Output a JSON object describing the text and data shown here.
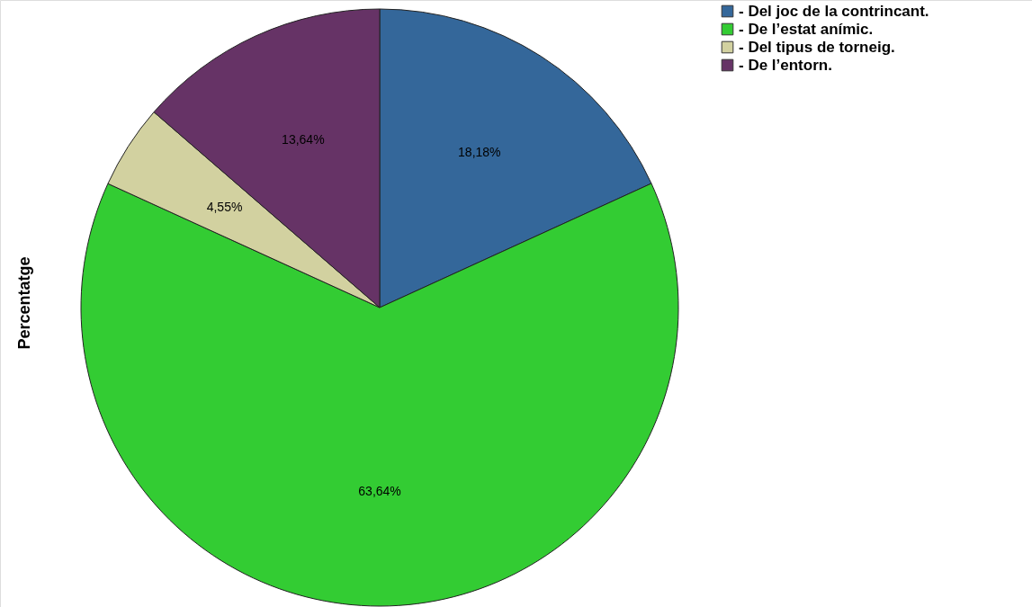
{
  "chart_data": {
    "type": "pie",
    "ylabel": "Percentatge",
    "categories": [
      "- Del joc de la contrincant.",
      "- De l’estat anímic.",
      "- Del tipus de torneig.",
      "- De l’entorn."
    ],
    "values": [
      18.18,
      63.64,
      4.55,
      13.64
    ],
    "colors": [
      "#34679a",
      "#33cc33",
      "#d2d1a0",
      "#663366"
    ],
    "value_labels": [
      "18,18%",
      "63,64%",
      "4,55%",
      "13,64%"
    ],
    "legend": "top right"
  }
}
